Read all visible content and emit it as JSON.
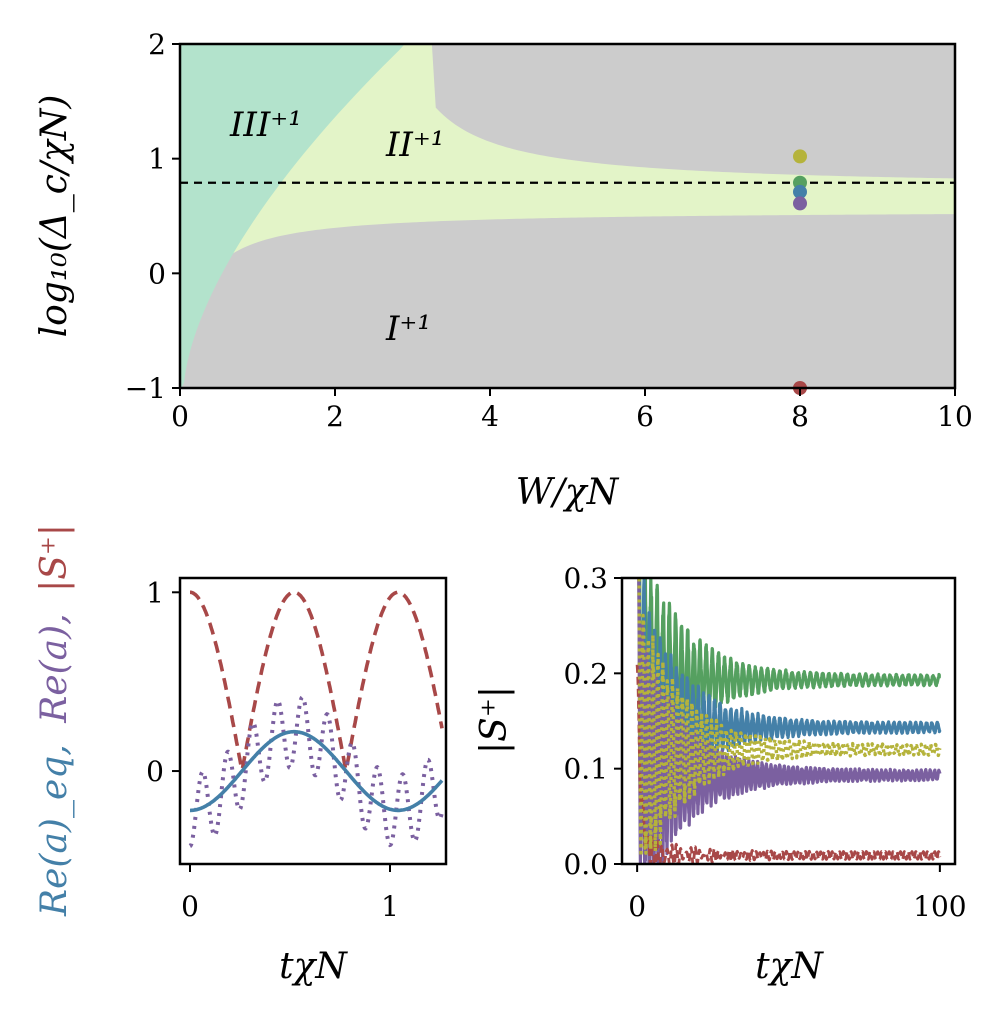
{
  "chart_data": [
    {
      "type": "heatmap",
      "title": "",
      "xlabel": "W/χN",
      "ylabel": "log₁₀(Δ_c/χN)",
      "xlim": [
        0,
        10
      ],
      "ylim": [
        -1,
        2
      ],
      "xticks": [
        "0",
        "2",
        "4",
        "6",
        "8",
        "10"
      ],
      "yticks": [
        "−1",
        "0",
        "1",
        "2"
      ],
      "regions": [
        {
          "name": "I",
          "label": "I⁺¹",
          "color": "#cccccc"
        },
        {
          "name": "II",
          "label": "II⁺¹",
          "color": "#e3f4c8"
        },
        {
          "name": "III",
          "label": "III⁺¹",
          "color": "#b3e3cc"
        }
      ],
      "reference_line": {
        "y": 0.79,
        "style": "dashed",
        "color": "#000000"
      },
      "points": [
        {
          "x": 8,
          "y": 1.02,
          "color": "#b5b33b"
        },
        {
          "x": 8,
          "y": 0.79,
          "color": "#55a060"
        },
        {
          "x": 8,
          "y": 0.71,
          "color": "#4480a8"
        },
        {
          "x": 8,
          "y": 0.61,
          "color": "#7b60a0"
        },
        {
          "x": 8,
          "y": -1.0,
          "color": "#a84848"
        }
      ]
    },
    {
      "type": "line",
      "xlabel": "tχN",
      "ylabel": "Re(a)_eq,  Re(a),  |S⁺|",
      "ylabel_parts": [
        {
          "text": "Re(a)_eq,",
          "color": "#4480a8"
        },
        {
          "text": "Re(a),",
          "color": "#7b60a0"
        },
        {
          "text": "|S⁺|",
          "color": "#a84848"
        }
      ],
      "xlim": [
        -0.05,
        1.28
      ],
      "ylim": [
        -0.52,
        1.08
      ],
      "xticks": [
        "0",
        "1"
      ],
      "yticks": [
        "0",
        "1"
      ],
      "series": [
        {
          "component": "Re(a)_eq",
          "color": "#4480a8",
          "style": "solid",
          "amplitude": 0.22,
          "period": 1.04,
          "phase_peak": 0.55
        },
        {
          "component": "Re(a)",
          "color": "#7b60a0",
          "style": "dotted",
          "envelope_amplitude": 0.22,
          "oscillation_amplitude": 0.2,
          "fast_frequency": 8
        },
        {
          "component": "|S⁺|",
          "color": "#a84848",
          "style": "dashed",
          "period": 0.52
        }
      ]
    },
    {
      "type": "line",
      "xlabel": "tχN",
      "ylabel": "|S⁺|",
      "xlim": [
        -5,
        105
      ],
      "ylim": [
        0,
        0.3
      ],
      "xticks": [
        "0",
        "100"
      ],
      "yticks": [
        "0.0",
        "0.1",
        "0.2",
        "0.3"
      ],
      "series": [
        {
          "color": "#55a060",
          "style": "solid",
          "steady": 0.193
        },
        {
          "color": "#4480a8",
          "style": "solid",
          "steady": 0.143
        },
        {
          "color": "#b5b33b",
          "style": "dotted",
          "steady": 0.12
        },
        {
          "color": "#7b60a0",
          "style": "solid",
          "steady": 0.093
        },
        {
          "color": "#a84848",
          "style": "dashed",
          "steady": 0.009
        }
      ]
    }
  ]
}
